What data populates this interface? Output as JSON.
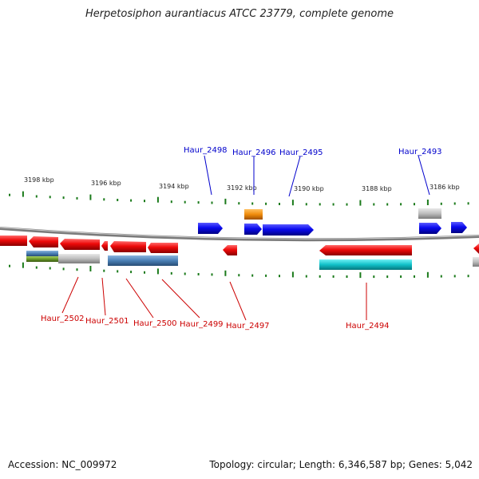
{
  "title": "Herpetosiphon aurantiacus ATCC 23779, complete genome",
  "footer": {
    "accession": "Accession: NC_009972",
    "summary": "Topology: circular; Length: 6,346,587 bp; Genes: 5,042"
  },
  "scale_labels": [
    "3198 kbp",
    "3196 kbp",
    "3194 kbp",
    "3192 kbp",
    "3190 kbp",
    "3188 kbp",
    "3186 kbp"
  ],
  "gene_labels_top": [
    "Haur_2498",
    "Haur_2496",
    "Haur_2495",
    "Haur_2493"
  ],
  "gene_labels_bottom": [
    "Haur_2502",
    "Haur_2501",
    "Haur_2500",
    "Haur_2499",
    "Haur_2497",
    "Haur_2494"
  ],
  "colors": {
    "forward_cds": "#0a0aee",
    "reverse_cds": "#ee0a0a",
    "backbone": "#8c8c8c",
    "tick": "#1a7a1a",
    "blue_label": "#0000cc",
    "red_label": "#cc0000",
    "feature_orange": "#f08c0c",
    "feature_gray": "#bdbdbd",
    "feature_steelblue": "#4a7fb5",
    "feature_cyan": "#10c0c8",
    "feature_olive": "#6a9a2a"
  }
}
